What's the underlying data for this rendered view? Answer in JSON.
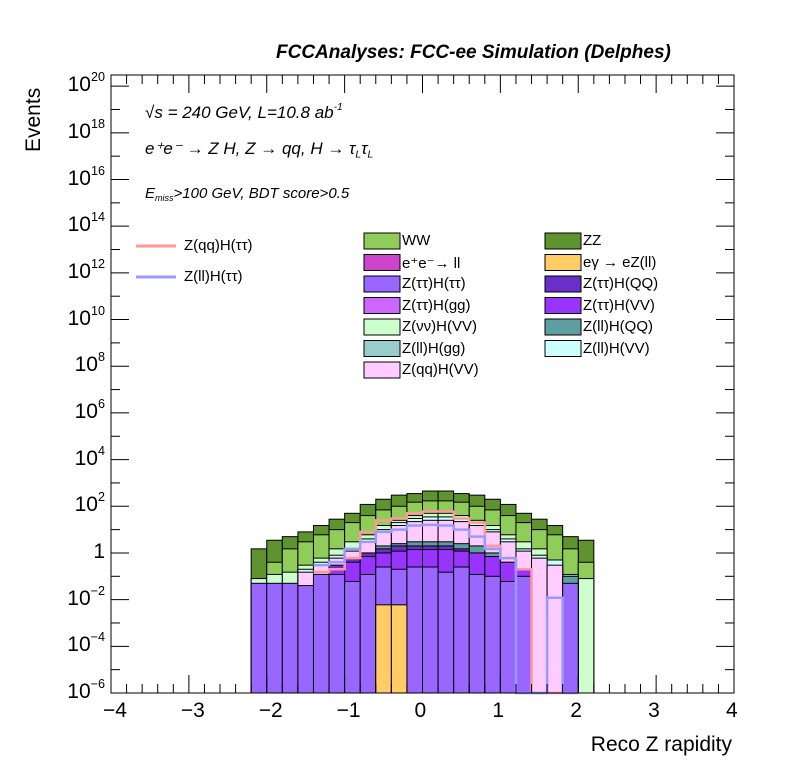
{
  "header": {
    "title": "FCCAnalyses: FCC-ee Simulation (Delphes)"
  },
  "annotations": {
    "line1_sqrt": "√s",
    "line1_rest": " = 240 GeV, L=10.8 ab",
    "line1_exp": "-1",
    "line2": "e⁺e⁻ → Z H, Z → qq, H → τ",
    "line2_sub1": "L",
    "line2_tau": "τ",
    "line2_sub2": "L",
    "line3_E": "E",
    "line3_sub": "miss",
    "line3_rest": ">100 GeV, BDT score>0.5"
  },
  "chart_data": {
    "type": "area",
    "title": "",
    "xlabel": "Reco Z rapidity",
    "ylabel": "Events",
    "xlim": [
      -4,
      4
    ],
    "ylim": [
      1e-06,
      3e+20
    ],
    "yscale": "log",
    "x_ticks": [
      "−4",
      "−3",
      "−2",
      "−1",
      "0",
      "1",
      "2",
      "3",
      "4"
    ],
    "y_ticks": [
      {
        "v": 1e-06,
        "base": "10",
        "exp": "−6"
      },
      {
        "v": 0.0001,
        "base": "10",
        "exp": "−4"
      },
      {
        "v": 0.01,
        "base": "10",
        "exp": "−2"
      },
      {
        "v": 1,
        "base": "1",
        "exp": ""
      },
      {
        "v": 100.0,
        "base": "10",
        "exp": "2"
      },
      {
        "v": 10000.0,
        "base": "10",
        "exp": "4"
      },
      {
        "v": 1000000.0,
        "base": "10",
        "exp": "6"
      },
      {
        "v": 100000000.0,
        "base": "10",
        "exp": "8"
      },
      {
        "v": 10000000000.0,
        "base": "10",
        "exp": "10"
      },
      {
        "v": 1000000000000.0,
        "base": "10",
        "exp": "12"
      },
      {
        "v": 100000000000000.0,
        "base": "10",
        "exp": "14"
      },
      {
        "v": 1e+16,
        "base": "10",
        "exp": "16"
      },
      {
        "v": 1e+18,
        "base": "10",
        "exp": "18"
      },
      {
        "v": 1e+20,
        "base": "10",
        "exp": "20"
      }
    ],
    "bin_edges": [
      -2.2,
      -2.0,
      -1.8,
      -1.6,
      -1.4,
      -1.2,
      -1.0,
      -0.8,
      -0.6,
      -0.4,
      -0.2,
      0.0,
      0.2,
      0.4,
      0.6,
      0.8,
      1.0,
      1.2,
      1.4,
      1.6,
      1.8,
      2.0,
      2.2
    ],
    "stack_series": [
      {
        "name": "ZZ",
        "color": "#5e932f",
        "totals": [
          1.5,
          3.5,
          5,
          8,
          15,
          28,
          50,
          120,
          200,
          300,
          350,
          450,
          450,
          350,
          300,
          200,
          120,
          50,
          28,
          15,
          5,
          3.5
        ]
      },
      {
        "name": "WW",
        "color": "#8fcc5a",
        "totals": [
          0.08,
          0.4,
          1.5,
          3,
          6,
          10,
          20,
          40,
          70,
          100,
          150,
          170,
          170,
          150,
          100,
          70,
          40,
          20,
          10,
          6,
          1.5,
          0.4
        ]
      },
      {
        "name": "Z(νν)H(VV)",
        "color": "#ccffcc",
        "totals": [
          0.08,
          0.12,
          0.15,
          0.3,
          0.6,
          1.5,
          3,
          6,
          15,
          25,
          40,
          50,
          50,
          40,
          25,
          15,
          6,
          3,
          1.5,
          0.3,
          0.12,
          0.08
        ]
      },
      {
        "name": "Z(ll)H(VV)",
        "color": "#ccffff",
        "totals": [
          0.0,
          0.0,
          0.0,
          0.2,
          0.4,
          0.8,
          1.5,
          4,
          10,
          20,
          30,
          35,
          35,
          30,
          20,
          10,
          4,
          1.5,
          0.8,
          0.5,
          0.1,
          0.0
        ]
      },
      {
        "name": "Z(qq)H(VV)",
        "color": "#ffccff",
        "totals": [
          0.0,
          0.0,
          0.0,
          0.15,
          0.3,
          0.6,
          1.2,
          3,
          8,
          15,
          22,
          25,
          25,
          22,
          15,
          8,
          3,
          1.2,
          0.6,
          0.3,
          0.0,
          0.0
        ]
      },
      {
        "name": "Z(ll)H(QQ)",
        "color": "#5f9ea0",
        "totals": [
          0.0,
          0.0,
          0.0,
          0.0,
          0.0,
          0.0,
          0.4,
          1.0,
          2.0,
          2.5,
          3.0,
          3.0,
          3.0,
          2.5,
          2.0,
          1.0,
          0.4,
          0.0,
          0.0,
          0.0,
          0.1,
          0.0
        ]
      },
      {
        "name": "Z(ττ)H(QQ)",
        "color": "#6a2fc9",
        "totals": [
          0.0,
          0.0,
          0.0,
          0.0,
          0.0,
          0.3,
          0.6,
          1.0,
          1.5,
          2.0,
          2.0,
          2.0,
          2.0,
          1.5,
          1.0,
          0.6,
          0.3,
          0.0,
          0.0,
          0.0,
          0.0,
          0.0
        ]
      },
      {
        "name": "Z(ττ)H(VV)",
        "color": "#9933ff",
        "totals": [
          0.0,
          0.0,
          0.0,
          0.0,
          0.0,
          0.2,
          0.4,
          0.7,
          1.0,
          1.2,
          1.4,
          1.4,
          1.4,
          1.2,
          1.0,
          0.7,
          0.4,
          0.2,
          0.0,
          0.0,
          0.0,
          0.0
        ]
      },
      {
        "name": "Z(ll)H(gg)",
        "color": "#99cccc",
        "totals": [
          0.0,
          0.0,
          0.0,
          0.0,
          0.0,
          0.0,
          0.0,
          0.0,
          0.0,
          0.0,
          0.0,
          0.0,
          0.0,
          0.0,
          0.0,
          0.0,
          0.0,
          0.0,
          0.0,
          0.0,
          0.0,
          0.0
        ]
      },
      {
        "name": "Z(ττ)H(gg)",
        "color": "#cc66ff",
        "totals": [
          0.0,
          0.0,
          0.0,
          0.0,
          0.0,
          0.0,
          0.0,
          0.0,
          0.0,
          0.0,
          0.0,
          0.0,
          0.0,
          0.0,
          0.0,
          0.0,
          0.0,
          0.0,
          0.0,
          0.0,
          0.0,
          0.0
        ]
      },
      {
        "name": "Z(ττ)H(ττ)",
        "color": "#9966ff",
        "totals": [
          0.05,
          0.05,
          0.05,
          0.04,
          0.12,
          0.12,
          0.06,
          0.12,
          0.25,
          0.2,
          0.25,
          0.25,
          0.15,
          0.25,
          0.12,
          0.1,
          0.06,
          0.1,
          0.0,
          0.0,
          0.05,
          0.0
        ]
      },
      {
        "name": "e⁺e⁻→ ll",
        "color": "#cc44cc",
        "totals": [
          0.0,
          0.0,
          0.0,
          0.0,
          0.0,
          0.0,
          0.0,
          0.0,
          0.0,
          0.0,
          0.0,
          0.0,
          0.0,
          0.0,
          0.0,
          0.0,
          0.0,
          0.0,
          0.0,
          0.0,
          0.0,
          0.0
        ]
      },
      {
        "name": "eγ → eZ(ll)",
        "color": "#ffcc66",
        "totals": [
          0.0,
          0.0,
          0.0,
          0.0,
          0.0,
          0.0,
          0.0,
          0.0,
          0.006,
          0.006,
          0.0,
          0.0,
          0.0,
          0.0,
          0.0,
          0.0,
          0.0,
          0.0,
          0.0,
          0.0,
          0.0,
          0.0
        ]
      }
    ],
    "overlay_series": [
      {
        "name": "Z(qq)H(ττ)",
        "color": "#ff9999",
        "values": [
          0,
          0,
          0,
          0,
          0.15,
          0.2,
          0.6,
          8,
          25,
          30,
          50,
          60,
          60,
          30,
          20,
          2,
          0.6,
          0.2,
          1e-06,
          1e-06,
          0,
          0
        ]
      },
      {
        "name": "Z(ll)H(ττ)",
        "color": "#9999ff",
        "values": [
          0,
          0,
          0,
          0,
          0.3,
          0.4,
          1.5,
          3,
          8,
          10,
          15,
          16,
          15,
          10,
          5,
          1.5,
          0.6,
          1e-06,
          1e-06,
          0.012,
          1e-06,
          0
        ]
      }
    ],
    "legend": [
      {
        "name": "WW",
        "color": "#8fcc5a"
      },
      {
        "name": "ZZ",
        "color": "#5e932f"
      },
      {
        "name": "e⁺e⁻→ ll",
        "color": "#cc44cc"
      },
      {
        "name": "eγ → eZ(ll)",
        "color": "#ffcc66"
      },
      {
        "name": "Z(ττ)H(ττ)",
        "color": "#9966ff"
      },
      {
        "name": "Z(ττ)H(QQ)",
        "color": "#6a2fc9"
      },
      {
        "name": "Z(ττ)H(gg)",
        "color": "#cc66ff"
      },
      {
        "name": "Z(ττ)H(VV)",
        "color": "#9933ff"
      },
      {
        "name": "Z(νν)H(VV)",
        "color": "#ccffcc"
      },
      {
        "name": "Z(ll)H(QQ)",
        "color": "#5f9ea0"
      },
      {
        "name": "Z(ll)H(gg)",
        "color": "#99cccc"
      },
      {
        "name": "Z(ll)H(VV)",
        "color": "#ccffff"
      },
      {
        "name": "Z(qq)H(VV)",
        "color": "#ffccff"
      }
    ],
    "legend_lines": [
      {
        "name": "Z(qq)H(ττ)",
        "color": "#ff9999"
      },
      {
        "name": "Z(ll)H(ττ)",
        "color": "#9999ff"
      }
    ]
  }
}
